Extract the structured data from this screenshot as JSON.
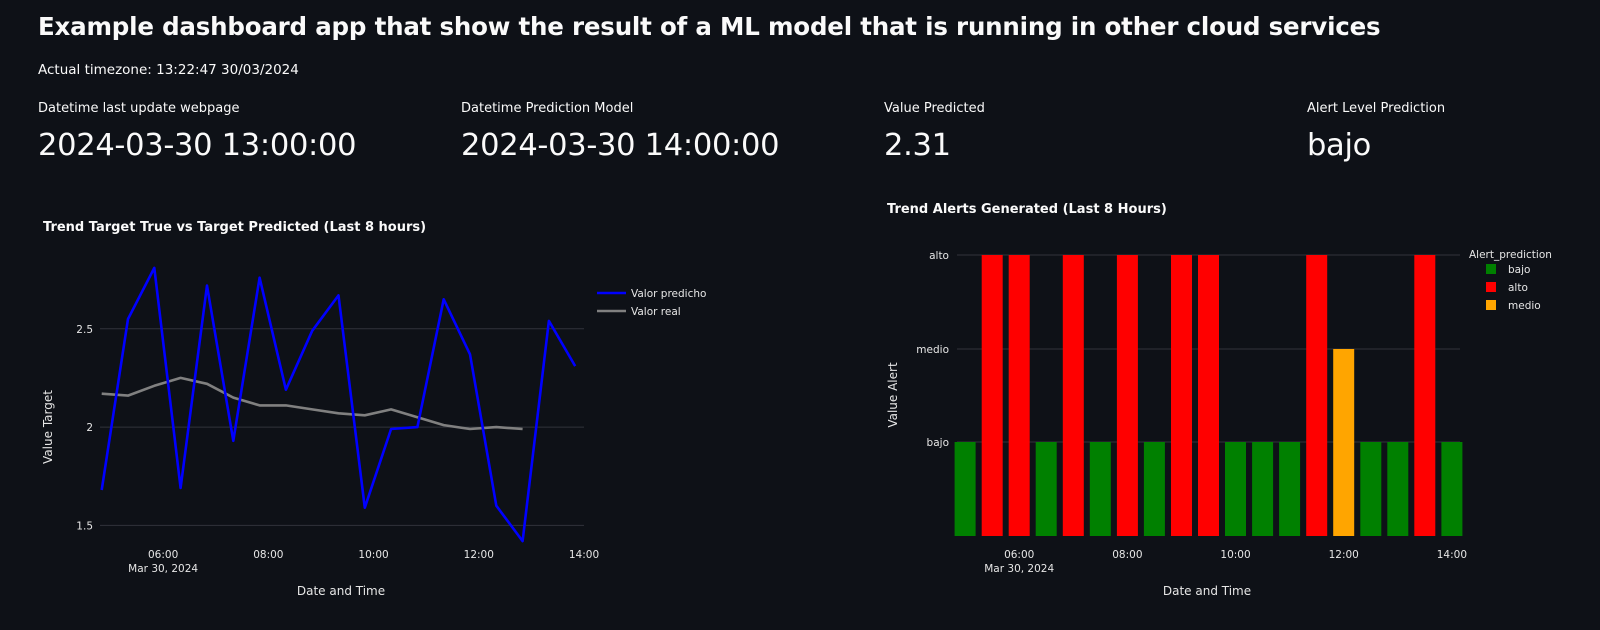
{
  "page": {
    "title": "Example dashboard app that show the result of a ML model that is running in other cloud services",
    "timezone_text": "Actual timezone: 13:22:47 30/03/2024"
  },
  "metrics": [
    {
      "label": "Datetime last update webpage",
      "value": "2024-03-30 13:00:00"
    },
    {
      "label": "Datetime Prediction Model",
      "value": "2024-03-30 14:00:00"
    },
    {
      "label": "Value Predicted",
      "value": "2.31"
    },
    {
      "label": "Alert Level Prediction",
      "value": "bajo"
    }
  ],
  "colors": {
    "background": "#0e1117",
    "grid": "#31333b",
    "predicho": "#0000ff",
    "real": "#808080",
    "bajo": "#008000",
    "alto": "#ff0000",
    "medio": "#ffa500"
  },
  "chart_data": [
    {
      "type": "line",
      "title": "Trend Target True vs Target Predicted (Last 8 hours)",
      "xlabel": "Date and Time",
      "ylabel": "Value Target",
      "x_ticks": [
        "06:00",
        "08:00",
        "10:00",
        "12:00",
        "14:00"
      ],
      "x_tick_sublabel": "Mar 30, 2024",
      "y_ticks": [
        "1.5",
        "2",
        "2.5"
      ],
      "ylim": [
        1.4,
        2.85
      ],
      "xlim_hours": [
        4.8,
        14.0
      ],
      "legend_position": "top-right",
      "series": [
        {
          "name": "Valor predicho",
          "color": "#0000ff",
          "x_hours": [
            4.833,
            5.333,
            5.833,
            6.333,
            6.833,
            7.333,
            7.833,
            8.333,
            8.833,
            9.333,
            9.833,
            10.333,
            10.833,
            11.333,
            11.833,
            12.333,
            12.833,
            13.333,
            13.833
          ],
          "values": [
            1.68,
            2.55,
            2.81,
            1.69,
            2.72,
            1.93,
            2.76,
            2.19,
            2.49,
            2.67,
            1.59,
            1.99,
            2.0,
            2.65,
            2.37,
            1.6,
            1.42,
            2.54,
            2.31
          ]
        },
        {
          "name": "Valor real",
          "color": "#808080",
          "x_hours": [
            4.833,
            5.333,
            5.833,
            6.333,
            6.833,
            7.333,
            7.833,
            8.333,
            8.833,
            9.333,
            9.833,
            10.333,
            10.833,
            11.333,
            11.833,
            12.333,
            12.833
          ],
          "values": [
            2.17,
            2.16,
            2.21,
            2.25,
            2.22,
            2.15,
            2.11,
            2.11,
            2.09,
            2.07,
            2.06,
            2.09,
            2.05,
            2.01,
            1.99,
            2.0,
            1.99
          ]
        }
      ]
    },
    {
      "type": "bar",
      "title": "Trend Alerts Generated (Last 8 Hours)",
      "xlabel": "Date and Time",
      "ylabel": "Value Alert",
      "x_ticks": [
        "06:00",
        "08:00",
        "10:00",
        "12:00",
        "14:00"
      ],
      "x_tick_sublabel": "Mar 30, 2024",
      "y_ticks": [
        "bajo",
        "medio",
        "alto"
      ],
      "legend_title": "Alert_prediction",
      "legend": [
        "bajo",
        "alto",
        "medio"
      ],
      "legend_position": "top-right",
      "xlim_hours": [
        4.85,
        14.15
      ],
      "bars": [
        {
          "hour": 5.0,
          "level": "bajo"
        },
        {
          "hour": 5.5,
          "level": "alto"
        },
        {
          "hour": 6.0,
          "level": "alto"
        },
        {
          "hour": 6.5,
          "level": "bajo"
        },
        {
          "hour": 7.0,
          "level": "alto"
        },
        {
          "hour": 7.5,
          "level": "bajo"
        },
        {
          "hour": 8.0,
          "level": "alto"
        },
        {
          "hour": 8.5,
          "level": "bajo"
        },
        {
          "hour": 9.0,
          "level": "alto"
        },
        {
          "hour": 9.5,
          "level": "alto"
        },
        {
          "hour": 10.0,
          "level": "bajo"
        },
        {
          "hour": 10.5,
          "level": "bajo"
        },
        {
          "hour": 11.0,
          "level": "bajo"
        },
        {
          "hour": 11.5,
          "level": "alto"
        },
        {
          "hour": 12.0,
          "level": "medio"
        },
        {
          "hour": 12.5,
          "level": "bajo"
        },
        {
          "hour": 13.0,
          "level": "bajo"
        },
        {
          "hour": 13.5,
          "level": "alto"
        },
        {
          "hour": 14.0,
          "level": "bajo"
        }
      ]
    }
  ]
}
